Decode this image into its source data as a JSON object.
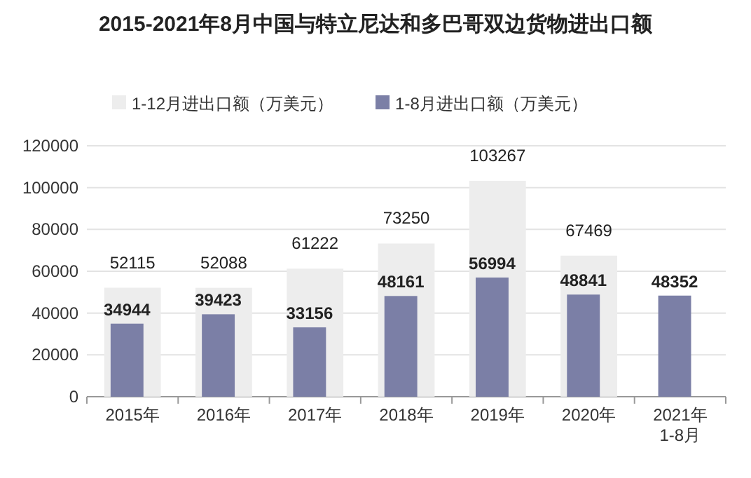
{
  "chart_data": {
    "type": "bar",
    "title": "2015-2021年8月中国与特立尼达和多巴哥双边货物进出口额",
    "categories": [
      "2015年",
      "2016年",
      "2017年",
      "2018年",
      "2019年",
      "2020年",
      "2021年\n1-8月"
    ],
    "series": [
      {
        "name": "1-12月进出口额（万美元）",
        "color": "#ededed",
        "values": [
          52115,
          52088,
          61222,
          73250,
          103267,
          67469,
          null
        ]
      },
      {
        "name": "1-8月进出口额（万美元）",
        "color": "#7b7fa6",
        "values": [
          34944,
          39423,
          33156,
          48161,
          56994,
          48841,
          48352
        ]
      }
    ],
    "ylim": [
      0,
      120000
    ],
    "yticks": [
      0,
      20000,
      40000,
      60000,
      80000,
      100000,
      120000
    ],
    "grid": "y",
    "legend": "top",
    "data_labels": true
  }
}
